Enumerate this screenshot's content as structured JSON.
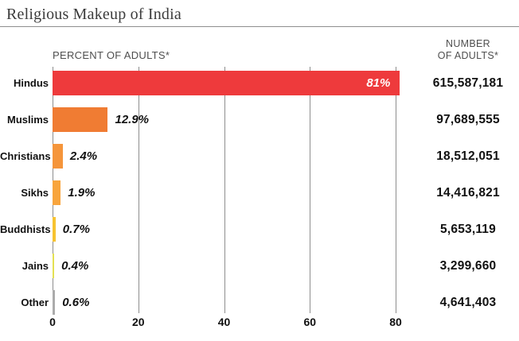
{
  "title": "Religious Makeup of India",
  "headers": {
    "percent": "PERCENT OF ADULTS*",
    "number_line1": "NUMBER",
    "number_line2": "OF ADULTS*"
  },
  "chart_data": {
    "type": "bar",
    "orientation": "horizontal",
    "title": "Religious Makeup of India",
    "xlabel": "PERCENT OF ADULTS*",
    "categories": [
      "Hindus",
      "Muslims",
      "Christians",
      "Sikhs",
      "Buddhists",
      "Jains",
      "Other"
    ],
    "values": [
      81,
      12.9,
      2.4,
      1.9,
      0.7,
      0.4,
      0.6
    ],
    "value_labels": [
      "81%",
      "12.9%",
      "2.4%",
      "1.9%",
      "0.7%",
      "0.4%",
      "0.6%"
    ],
    "numbers_of_adults": [
      "615,587,181",
      "97,689,555",
      "18,512,051",
      "14,416,821",
      "5,653,119",
      "3,299,660",
      "4,641,403"
    ],
    "bar_colors": [
      "#ee3a3c",
      "#f07c33",
      "#f5953b",
      "#f8a53d",
      "#f7c331",
      "#e4e052",
      "#ababab"
    ],
    "x_ticks": [
      0,
      20,
      40,
      60,
      80
    ],
    "xlim": [
      0,
      80
    ],
    "grid": true,
    "legend": "none"
  }
}
